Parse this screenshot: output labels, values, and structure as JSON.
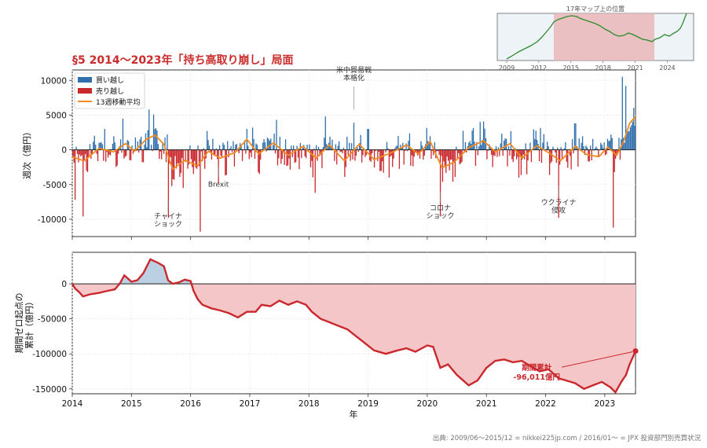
{
  "figure": {
    "title": "§5 2014〜2023年「持ち高取り崩し」局面",
    "source": "出典: 2009/06〜2015/12 = nikkei225jp.com / 2016/01〜 = JPX 投資部門別売買状況",
    "title_color": "#cc2b2b"
  },
  "chart_data": [
    {
      "type": "bar",
      "id": "weekly",
      "ylabel": "週次（億円）",
      "xlabel": "",
      "ylim": [
        -12500,
        11500
      ],
      "xlim": [
        2014.0,
        2023.52
      ],
      "yticks": [
        -10000,
        -5000,
        0,
        5000,
        10000
      ],
      "grid": true,
      "legend_position": "upper-left",
      "colors": {
        "buy": "#2f6fad",
        "sell": "#c9282d",
        "ma": "#f28a1f"
      },
      "legend": [
        "買い越し",
        "売り越し",
        "13週移動平均"
      ],
      "peaks": [
        {
          "t": 2014.05,
          "v": -7200
        },
        {
          "t": 2014.18,
          "v": -9600
        },
        {
          "t": 2014.55,
          "v": 3000
        },
        {
          "t": 2014.85,
          "v": 4500
        },
        {
          "t": 2015.3,
          "v": 5800
        },
        {
          "t": 2015.62,
          "v": -9800
        },
        {
          "t": 2015.88,
          "v": -5500
        },
        {
          "t": 2016.16,
          "v": -11800
        },
        {
          "t": 2016.47,
          "v": -4800
        },
        {
          "t": 2017.05,
          "v": 3200
        },
        {
          "t": 2017.45,
          "v": 4300
        },
        {
          "t": 2018.1,
          "v": -6200
        },
        {
          "t": 2018.28,
          "v": 4800
        },
        {
          "t": 2018.76,
          "v": 3900
        },
        {
          "t": 2019.0,
          "v": 3000
        },
        {
          "t": 2019.35,
          "v": -4000
        },
        {
          "t": 2020.22,
          "v": -9600
        },
        {
          "t": 2020.9,
          "v": 4000
        },
        {
          "t": 2021.55,
          "v": -4000
        },
        {
          "t": 2022.22,
          "v": -9800
        },
        {
          "t": 2022.5,
          "v": 3800
        },
        {
          "t": 2023.15,
          "v": -11200
        },
        {
          "t": 2023.3,
          "v": 10500
        },
        {
          "t": 2023.36,
          "v": 9200
        }
      ],
      "moving_average": [
        {
          "t": 2014.0,
          "v": -1000
        },
        {
          "t": 2014.2,
          "v": -1600
        },
        {
          "t": 2014.45,
          "v": 200
        },
        {
          "t": 2014.7,
          "v": -300
        },
        {
          "t": 2014.9,
          "v": 900
        },
        {
          "t": 2015.05,
          "v": -200
        },
        {
          "t": 2015.25,
          "v": 1500
        },
        {
          "t": 2015.4,
          "v": 2100
        },
        {
          "t": 2015.55,
          "v": 800
        },
        {
          "t": 2015.7,
          "v": -2800
        },
        {
          "t": 2015.9,
          "v": -1500
        },
        {
          "t": 2016.12,
          "v": -2300
        },
        {
          "t": 2016.3,
          "v": -200
        },
        {
          "t": 2016.5,
          "v": -1200
        },
        {
          "t": 2016.75,
          "v": -400
        },
        {
          "t": 2016.95,
          "v": 1500
        },
        {
          "t": 2017.15,
          "v": -600
        },
        {
          "t": 2017.4,
          "v": 1000
        },
        {
          "t": 2017.65,
          "v": -800
        },
        {
          "t": 2017.9,
          "v": 500
        },
        {
          "t": 2018.12,
          "v": -1200
        },
        {
          "t": 2018.35,
          "v": 700
        },
        {
          "t": 2018.6,
          "v": -1600
        },
        {
          "t": 2018.85,
          "v": 800
        },
        {
          "t": 2019.1,
          "v": -1400
        },
        {
          "t": 2019.4,
          "v": -400
        },
        {
          "t": 2019.65,
          "v": 700
        },
        {
          "t": 2019.85,
          "v": -600
        },
        {
          "t": 2020.05,
          "v": 1200
        },
        {
          "t": 2020.25,
          "v": -2600
        },
        {
          "t": 2020.45,
          "v": -1800
        },
        {
          "t": 2020.7,
          "v": 300
        },
        {
          "t": 2020.95,
          "v": 1300
        },
        {
          "t": 2021.15,
          "v": -300
        },
        {
          "t": 2021.4,
          "v": 900
        },
        {
          "t": 2021.6,
          "v": -1200
        },
        {
          "t": 2021.85,
          "v": 600
        },
        {
          "t": 2022.05,
          "v": -400
        },
        {
          "t": 2022.25,
          "v": -1600
        },
        {
          "t": 2022.5,
          "v": 500
        },
        {
          "t": 2022.7,
          "v": -700
        },
        {
          "t": 2022.9,
          "v": -1000
        },
        {
          "t": 2023.05,
          "v": 400
        },
        {
          "t": 2023.2,
          "v": -800
        },
        {
          "t": 2023.32,
          "v": 1200
        },
        {
          "t": 2023.42,
          "v": 3800
        },
        {
          "t": 2023.52,
          "v": 4800
        }
      ],
      "annotations": [
        {
          "text": "米中貿易戦\n本格化",
          "t": 2018.76,
          "v": 1000
        },
        {
          "text": "チャイナ\nショック",
          "t": 2015.62,
          "v": -9000
        },
        {
          "text": "Brexit",
          "t": 2016.47,
          "v": -4200
        },
        {
          "text": "コロナ\nショック",
          "t": 2020.22,
          "v": -7800
        },
        {
          "text": "ウクライナ\n侵攻",
          "t": 2022.22,
          "v": -7000
        }
      ]
    },
    {
      "type": "area",
      "id": "cumulative",
      "ylabel": "期間ゼロ起点の\n累計（億円）",
      "xlabel": "年",
      "ylim": [
        -157000,
        45000
      ],
      "xlim": [
        2014.0,
        2023.52
      ],
      "yticks": [
        -150000,
        -100000,
        -50000,
        0
      ],
      "xticks": [
        2014,
        2015,
        2016,
        2017,
        2018,
        2019,
        2020,
        2021,
        2022,
        2023
      ],
      "grid": true,
      "colors": {
        "line": "#c9282d",
        "neg_fill": "#f5c6c7",
        "pos_fill": "#bcd0e3"
      },
      "points": [
        {
          "t": 2014.0,
          "v": 0
        },
        {
          "t": 2014.05,
          "v": -7000
        },
        {
          "t": 2014.12,
          "v": -12000
        },
        {
          "t": 2014.18,
          "v": -18000
        },
        {
          "t": 2014.3,
          "v": -15000
        },
        {
          "t": 2014.45,
          "v": -13000
        },
        {
          "t": 2014.6,
          "v": -10000
        },
        {
          "t": 2014.72,
          "v": -8000
        },
        {
          "t": 2014.8,
          "v": 0
        },
        {
          "t": 2014.88,
          "v": 12000
        },
        {
          "t": 2015.0,
          "v": 3000
        },
        {
          "t": 2015.1,
          "v": 5000
        },
        {
          "t": 2015.2,
          "v": 15000
        },
        {
          "t": 2015.32,
          "v": 35000
        },
        {
          "t": 2015.45,
          "v": 30000
        },
        {
          "t": 2015.55,
          "v": 25000
        },
        {
          "t": 2015.62,
          "v": 5000
        },
        {
          "t": 2015.7,
          "v": 0
        },
        {
          "t": 2015.8,
          "v": 2000
        },
        {
          "t": 2015.9,
          "v": 6000
        },
        {
          "t": 2016.0,
          "v": 4000
        },
        {
          "t": 2016.05,
          "v": -10000
        },
        {
          "t": 2016.12,
          "v": -22000
        },
        {
          "t": 2016.2,
          "v": -30000
        },
        {
          "t": 2016.35,
          "v": -35000
        },
        {
          "t": 2016.5,
          "v": -38000
        },
        {
          "t": 2016.65,
          "v": -42000
        },
        {
          "t": 2016.8,
          "v": -48000
        },
        {
          "t": 2016.95,
          "v": -40000
        },
        {
          "t": 2017.1,
          "v": -40000
        },
        {
          "t": 2017.2,
          "v": -30000
        },
        {
          "t": 2017.35,
          "v": -32000
        },
        {
          "t": 2017.5,
          "v": -24000
        },
        {
          "t": 2017.65,
          "v": -30000
        },
        {
          "t": 2017.8,
          "v": -25000
        },
        {
          "t": 2017.95,
          "v": -30000
        },
        {
          "t": 2018.05,
          "v": -40000
        },
        {
          "t": 2018.2,
          "v": -50000
        },
        {
          "t": 2018.35,
          "v": -55000
        },
        {
          "t": 2018.5,
          "v": -60000
        },
        {
          "t": 2018.65,
          "v": -65000
        },
        {
          "t": 2018.8,
          "v": -75000
        },
        {
          "t": 2018.95,
          "v": -85000
        },
        {
          "t": 2019.1,
          "v": -95000
        },
        {
          "t": 2019.3,
          "v": -100000
        },
        {
          "t": 2019.5,
          "v": -95000
        },
        {
          "t": 2019.65,
          "v": -92000
        },
        {
          "t": 2019.8,
          "v": -97000
        },
        {
          "t": 2020.0,
          "v": -88000
        },
        {
          "t": 2020.1,
          "v": -90000
        },
        {
          "t": 2020.22,
          "v": -120000
        },
        {
          "t": 2020.35,
          "v": -115000
        },
        {
          "t": 2020.5,
          "v": -130000
        },
        {
          "t": 2020.7,
          "v": -145000
        },
        {
          "t": 2020.85,
          "v": -138000
        },
        {
          "t": 2021.0,
          "v": -120000
        },
        {
          "t": 2021.15,
          "v": -110000
        },
        {
          "t": 2021.3,
          "v": -108000
        },
        {
          "t": 2021.45,
          "v": -112000
        },
        {
          "t": 2021.6,
          "v": -110000
        },
        {
          "t": 2021.75,
          "v": -118000
        },
        {
          "t": 2021.9,
          "v": -125000
        },
        {
          "t": 2022.05,
          "v": -122000
        },
        {
          "t": 2022.22,
          "v": -135000
        },
        {
          "t": 2022.35,
          "v": -138000
        },
        {
          "t": 2022.5,
          "v": -142000
        },
        {
          "t": 2022.65,
          "v": -150000
        },
        {
          "t": 2022.8,
          "v": -145000
        },
        {
          "t": 2022.95,
          "v": -140000
        },
        {
          "t": 2023.1,
          "v": -148000
        },
        {
          "t": 2023.18,
          "v": -155000
        },
        {
          "t": 2023.28,
          "v": -140000
        },
        {
          "t": 2023.36,
          "v": -130000
        },
        {
          "t": 2023.42,
          "v": -115000
        },
        {
          "t": 2023.52,
          "v": -96011
        }
      ],
      "end_label": "期間累計\n-96,011億円",
      "end_value": -96011
    }
  ],
  "inset": {
    "title": "17年マップ上の位置",
    "xticks": [
      "2009",
      "2012",
      "2015",
      "2018",
      "2021",
      "2024"
    ],
    "colors": {
      "line": "#2e8b2e",
      "highlight": "#e9b6ba",
      "bg": "#eef3f8"
    }
  }
}
